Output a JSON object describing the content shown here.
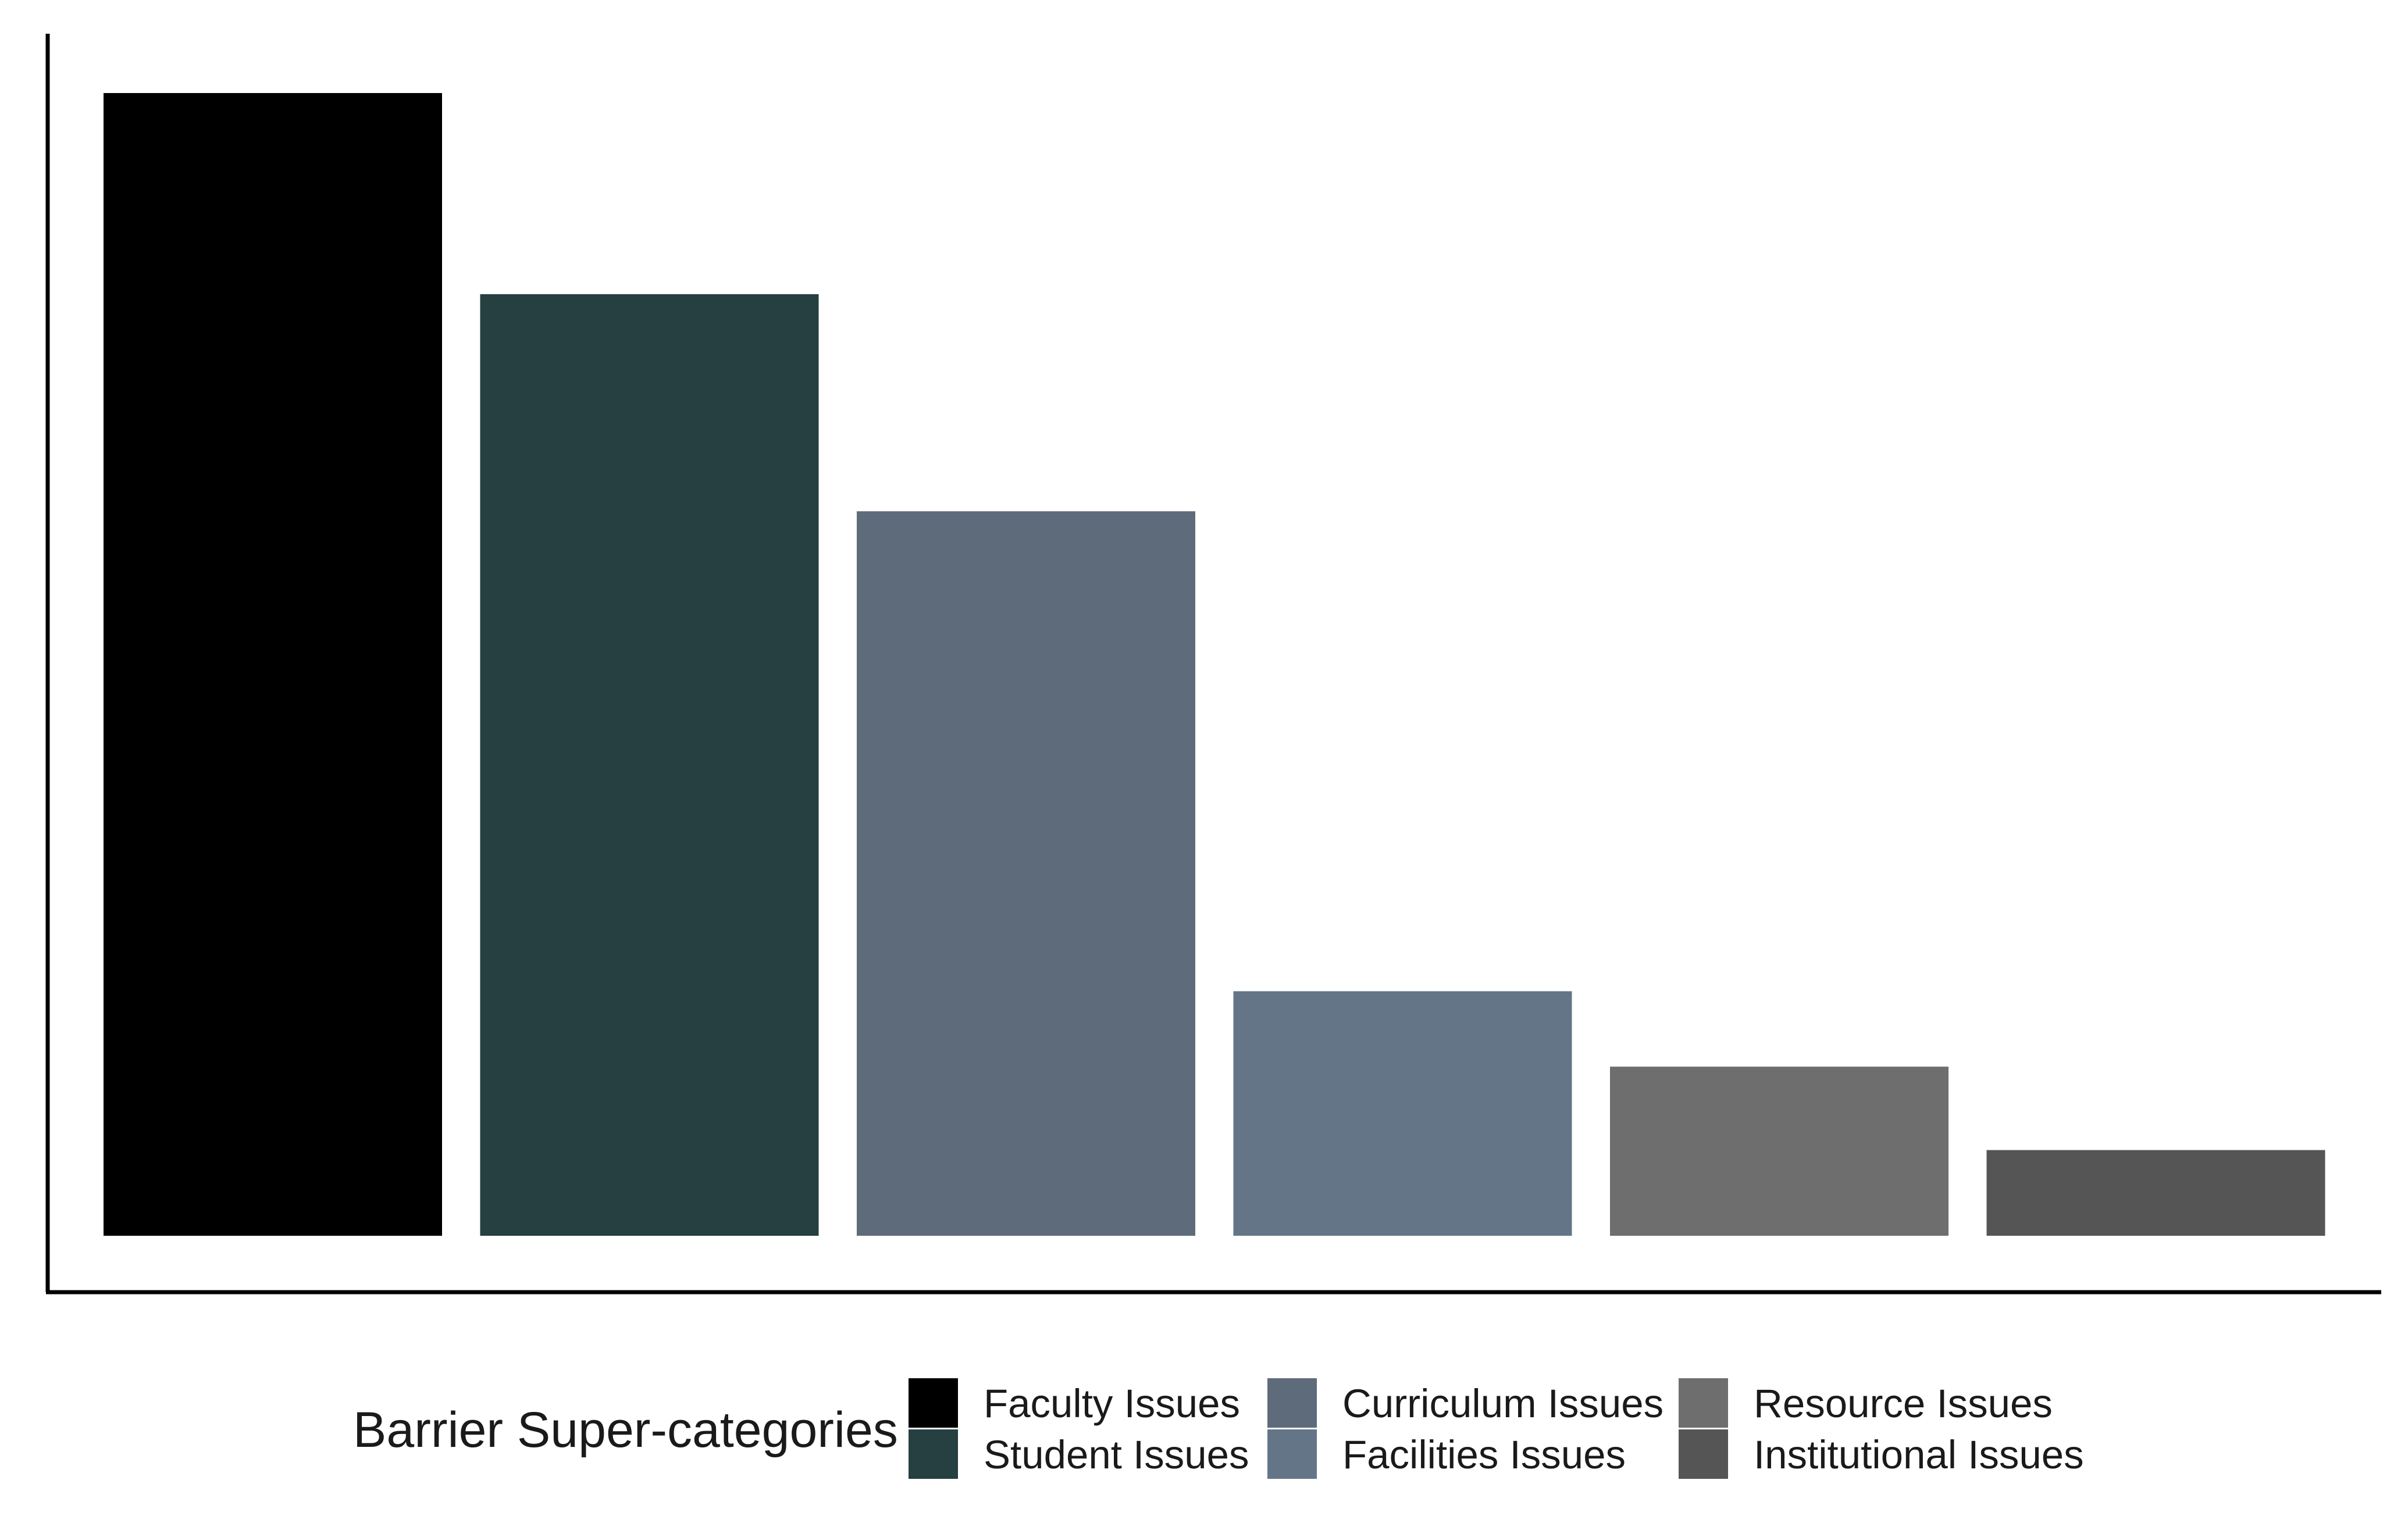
{
  "chart_data": {
    "type": "bar",
    "title": "",
    "xlabel": "",
    "ylabel": "",
    "categories": [
      "Faculty Issues",
      "Student Issues",
      "Curriculum Issues",
      "Facilities Issues",
      "Resource Issues",
      "Institutional Issues"
    ],
    "values": [
      100,
      82.4,
      63.4,
      21.4,
      14.8,
      7.5
    ],
    "ylim": [
      0,
      105
    ],
    "colors": [
      "#000000",
      "#263f40",
      "#5d6b7b",
      "#647588",
      "#6e6e6e",
      "#555555"
    ],
    "grid": false,
    "show_axis_ticks": false,
    "legend": {
      "title": "Barrier Super-categories",
      "position": "bottom",
      "items": [
        {
          "label": "Faculty Issues",
          "color": "#000000"
        },
        {
          "label": "Student Issues",
          "color": "#263f40"
        },
        {
          "label": "Curriculum Issues",
          "color": "#5d6b7b"
        },
        {
          "label": "Facilities Issues",
          "color": "#647588"
        },
        {
          "label": "Resource Issues",
          "color": "#6e6e6e"
        },
        {
          "label": "Institutional Issues",
          "color": "#555555"
        }
      ]
    }
  }
}
